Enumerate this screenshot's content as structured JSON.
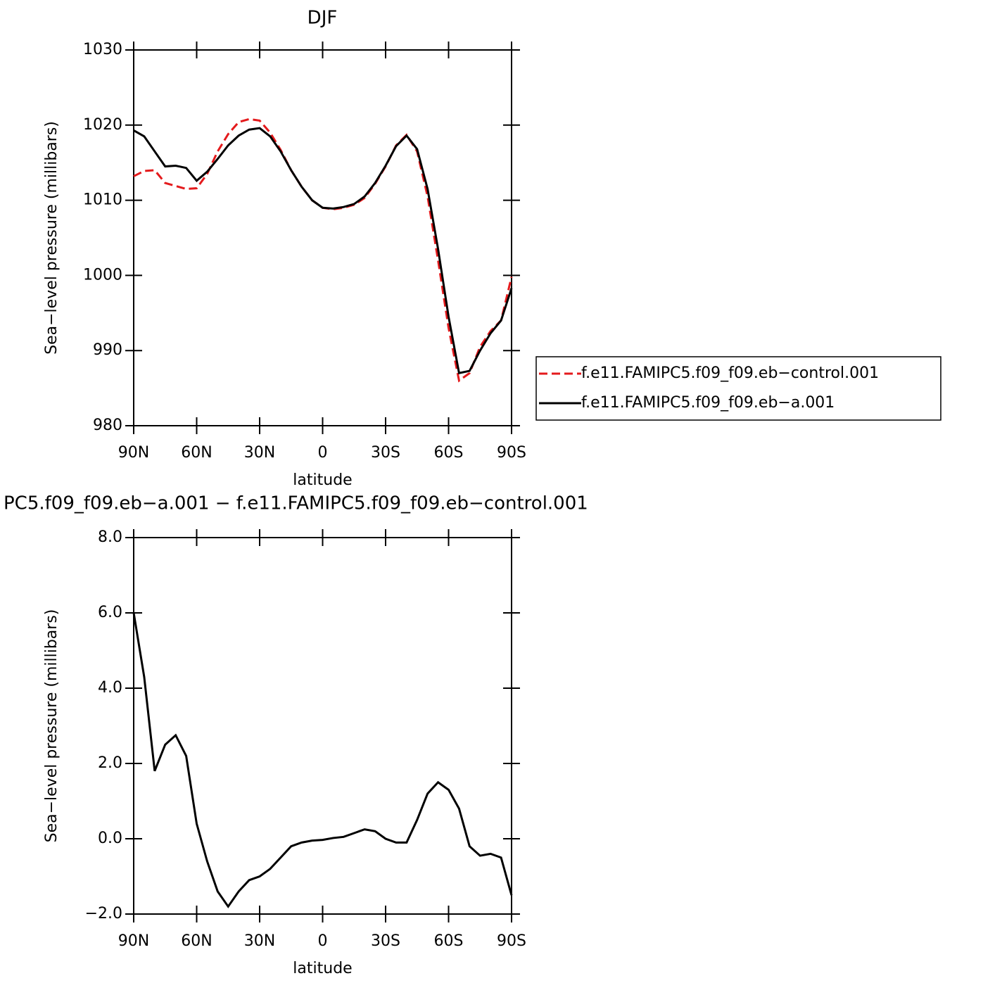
{
  "chart_data": [
    {
      "type": "line",
      "title": "DJF",
      "x_label": "latitude",
      "y_label": "Sea−level pressure (millibars)",
      "x": [
        90,
        85,
        80,
        75,
        70,
        65,
        60,
        55,
        50,
        45,
        40,
        35,
        30,
        25,
        20,
        15,
        10,
        5,
        0,
        -5,
        -10,
        -15,
        -20,
        -25,
        -30,
        -35,
        -40,
        -45,
        -50,
        -55,
        -60,
        -65,
        -70,
        -75,
        -80,
        -85,
        -90
      ],
      "xlim": [
        90,
        -90
      ],
      "xticks": [
        {
          "value": 90,
          "label": "90N"
        },
        {
          "value": 60,
          "label": "60N"
        },
        {
          "value": 30,
          "label": "30N"
        },
        0,
        {
          "value": -30,
          "label": "30S"
        },
        {
          "value": -60,
          "label": "60S"
        },
        {
          "value": -90,
          "label": "90S"
        }
      ],
      "ylim": [
        980,
        1030
      ],
      "yticks": [
        980,
        990,
        1000,
        1010,
        1020,
        1030
      ],
      "legend": "right",
      "series": [
        {
          "name": "f.e11.FAMIPC5.f09_f09.eb−control.001",
          "color": "#e41a1c",
          "line_style": "dashed",
          "values": [
            1013.2,
            1013.9,
            1014,
            1012.3,
            1011.9,
            1011.5,
            1011.6,
            1013.5,
            1016.5,
            1018.8,
            1020.4,
            1020.8,
            1020.6,
            1019,
            1016.7,
            1014,
            1011.8,
            1010,
            1009,
            1008.8,
            1009,
            1009.4,
            1010.3,
            1012.2,
            1014.5,
            1017.3,
            1018.7,
            1016.5,
            1010.5,
            1002,
            993,
            986,
            987,
            990.5,
            992.6,
            994,
            999.8
          ]
        },
        {
          "name": "f.e11.FAMIPC5.f09_f09.eb−a.001",
          "color": "#000000",
          "line_style": "solid",
          "values": [
            1019.3,
            1018.5,
            1016.5,
            1014.5,
            1014.6,
            1014.3,
            1012.6,
            1013.8,
            1015.5,
            1017.3,
            1018.6,
            1019.4,
            1019.6,
            1018.5,
            1016.5,
            1014,
            1011.8,
            1010,
            1009,
            1008.9,
            1009.1,
            1009.5,
            1010.5,
            1012.3,
            1014.6,
            1017.2,
            1018.6,
            1016.8,
            1011.5,
            1003.5,
            994.5,
            987,
            987.3,
            990,
            992.3,
            994,
            998.3
          ]
        }
      ]
    },
    {
      "type": "line",
      "title": "PC5.f09_f09.eb−a.001 − f.e11.FAMIPC5.f09_f09.eb−control.001",
      "x_label": "latitude",
      "y_label": "Sea−level pressure (millibars)",
      "x": [
        90,
        85,
        80,
        75,
        70,
        65,
        60,
        55,
        50,
        45,
        40,
        35,
        30,
        25,
        20,
        15,
        10,
        5,
        0,
        -5,
        -10,
        -15,
        -20,
        -25,
        -30,
        -35,
        -40,
        -45,
        -50,
        -55,
        -60,
        -65,
        -70,
        -75,
        -80,
        -85,
        -90
      ],
      "xlim": [
        90,
        -90
      ],
      "xticks": [
        {
          "value": 90,
          "label": "90N"
        },
        {
          "value": 60,
          "label": "60N"
        },
        {
          "value": 30,
          "label": "30N"
        },
        0,
        {
          "value": -30,
          "label": "30S"
        },
        {
          "value": -60,
          "label": "60S"
        },
        {
          "value": -90,
          "label": "90S"
        }
      ],
      "ylim": [
        -2,
        8
      ],
      "yticks": [
        {
          "value": -2,
          "label": "−2.0"
        },
        {
          "value": 0,
          "label": "0.0"
        },
        {
          "value": 2,
          "label": "2.0"
        },
        {
          "value": 4,
          "label": "4.0"
        },
        {
          "value": 6,
          "label": "6.0"
        },
        {
          "value": 8,
          "label": "8.0"
        }
      ],
      "series": [
        {
          "color": "#000000",
          "line_style": "solid",
          "values": [
            6.0,
            4.3,
            1.8,
            2.5,
            2.75,
            2.2,
            0.4,
            -0.6,
            -1.4,
            -1.8,
            -1.4,
            -1.1,
            -1.0,
            -0.8,
            -0.5,
            -0.2,
            -0.1,
            -0.05,
            -0.03,
            0.02,
            0.05,
            0.15,
            0.25,
            0.2,
            0.0,
            -0.1,
            -0.1,
            0.5,
            1.2,
            1.5,
            1.3,
            0.8,
            -0.2,
            -0.45,
            -0.4,
            -0.5,
            -1.5
          ]
        }
      ]
    }
  ]
}
